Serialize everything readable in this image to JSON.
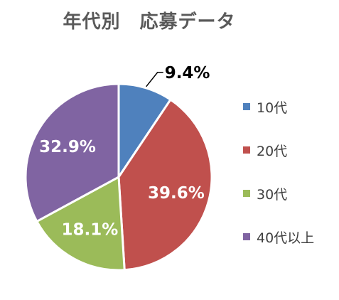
{
  "chart_data": {
    "type": "pie",
    "title": "年代別　応募データ",
    "categories": [
      "10代",
      "20代",
      "30代",
      "40代以上"
    ],
    "values": [
      9.4,
      39.6,
      18.1,
      32.9
    ],
    "value_labels": [
      "9.4%",
      "39.6%",
      "18.1%",
      "32.9%"
    ],
    "colors": [
      "#4F81BD",
      "#C0504D",
      "#9BBB59",
      "#8064A2"
    ],
    "start_angle": "12 o'clock",
    "direction": "clockwise",
    "legend_position": "right"
  }
}
